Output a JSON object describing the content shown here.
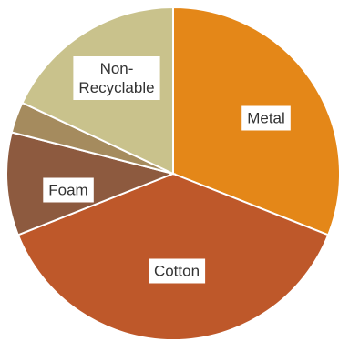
{
  "chart_data": {
    "type": "pie",
    "title": "",
    "start_angle_deg": 0,
    "direction": "clockwise",
    "slices": [
      {
        "label": [
          "Metal"
        ],
        "value": 31,
        "color": "#E48718",
        "show_label": true
      },
      {
        "label": [
          "Cotton"
        ],
        "value": 38,
        "color": "#BE582A",
        "show_label": true
      },
      {
        "label": [
          "Foam"
        ],
        "value": 10,
        "color": "#8D5A3F",
        "show_label": true
      },
      {
        "label": [],
        "value": 3,
        "color": "#A58B5E",
        "show_label": false
      },
      {
        "label": [
          "Non-",
          "Recyclable"
        ],
        "value": 18,
        "color": "#C9C28C",
        "show_label": true
      }
    ]
  }
}
